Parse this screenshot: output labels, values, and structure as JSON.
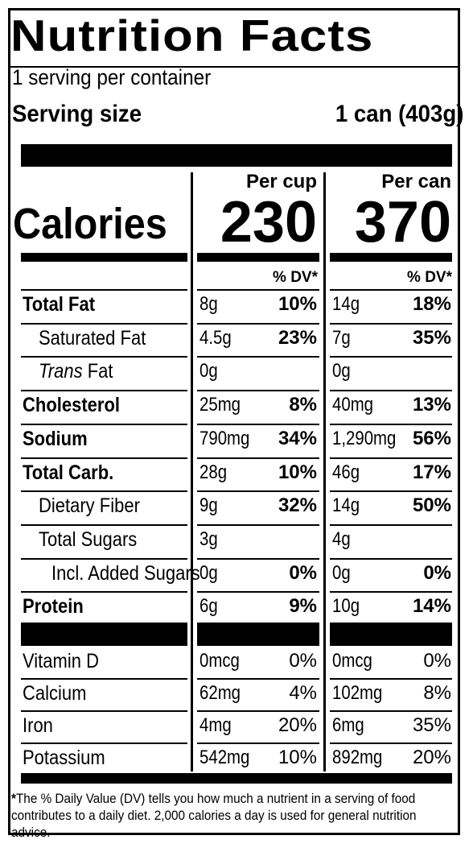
{
  "label": {
    "title": "Nutrition Facts",
    "servings_per_container": "1 serving per container",
    "serving_size_label": "Serving size",
    "serving_size_value": "1 can (403g)",
    "columns": [
      {
        "header": "Per cup",
        "calories": "230",
        "dv_header": "% DV*"
      },
      {
        "header": "Per can",
        "calories": "370",
        "dv_header": "% DV*"
      }
    ],
    "calories_label": "Calories",
    "nutrients": [
      {
        "name": "Total Fat",
        "bold": true,
        "indent": 0,
        "cup_amt": "8g",
        "cup_dv": "10%",
        "can_amt": "14g",
        "can_dv": "18%"
      },
      {
        "name": "Saturated Fat",
        "bold": false,
        "indent": 1,
        "cup_amt": "4.5g",
        "cup_dv": "23%",
        "can_amt": "7g",
        "can_dv": "35%"
      },
      {
        "name_italic": "Trans",
        "name": " Fat",
        "bold": false,
        "indent": 1,
        "cup_amt": "0g",
        "cup_dv": "",
        "can_amt": "0g",
        "can_dv": ""
      },
      {
        "name": "Cholesterol",
        "bold": true,
        "indent": 0,
        "cup_amt": "25mg",
        "cup_dv": "8%",
        "can_amt": "40mg",
        "can_dv": "13%"
      },
      {
        "name": "Sodium",
        "bold": true,
        "indent": 0,
        "cup_amt": "790mg",
        "cup_dv": "34%",
        "can_amt": "1,290mg",
        "can_dv": "56%"
      },
      {
        "name": "Total Carb.",
        "bold": true,
        "indent": 0,
        "cup_amt": "28g",
        "cup_dv": "10%",
        "can_amt": "46g",
        "can_dv": "17%"
      },
      {
        "name": "Dietary Fiber",
        "bold": false,
        "indent": 1,
        "cup_amt": "9g",
        "cup_dv": "32%",
        "can_amt": "14g",
        "can_dv": "50%"
      },
      {
        "name": "Total Sugars",
        "bold": false,
        "indent": 1,
        "cup_amt": "3g",
        "cup_dv": "",
        "can_amt": "4g",
        "can_dv": ""
      },
      {
        "name": "Incl. Added Sugars",
        "bold": false,
        "indent": 2,
        "cup_amt": "0g",
        "cup_dv": "0%",
        "can_amt": "0g",
        "can_dv": "0%"
      },
      {
        "name": "Protein",
        "bold": true,
        "indent": 0,
        "cup_amt": "6g",
        "cup_dv": "9%",
        "can_amt": "10g",
        "can_dv": "14%"
      }
    ],
    "vitamins": [
      {
        "name": "Vitamin D",
        "cup_amt": "0mcg",
        "cup_dv": "0%",
        "can_amt": "0mcg",
        "can_dv": "0%"
      },
      {
        "name": "Calcium",
        "cup_amt": "62mg",
        "cup_dv": "4%",
        "can_amt": "102mg",
        "can_dv": "8%"
      },
      {
        "name": "Iron",
        "cup_amt": "4mg",
        "cup_dv": "20%",
        "can_amt": "6mg",
        "can_dv": "35%"
      },
      {
        "name": "Potassium",
        "cup_amt": "542mg",
        "cup_dv": "10%",
        "can_amt": "892mg",
        "can_dv": "20%"
      }
    ],
    "footnote_star": "*",
    "footnote": "The % Daily Value (DV) tells you how much a nutrient in a serving of food contributes to a daily diet. 2,000 calories a day is used for general nutrition advice."
  }
}
